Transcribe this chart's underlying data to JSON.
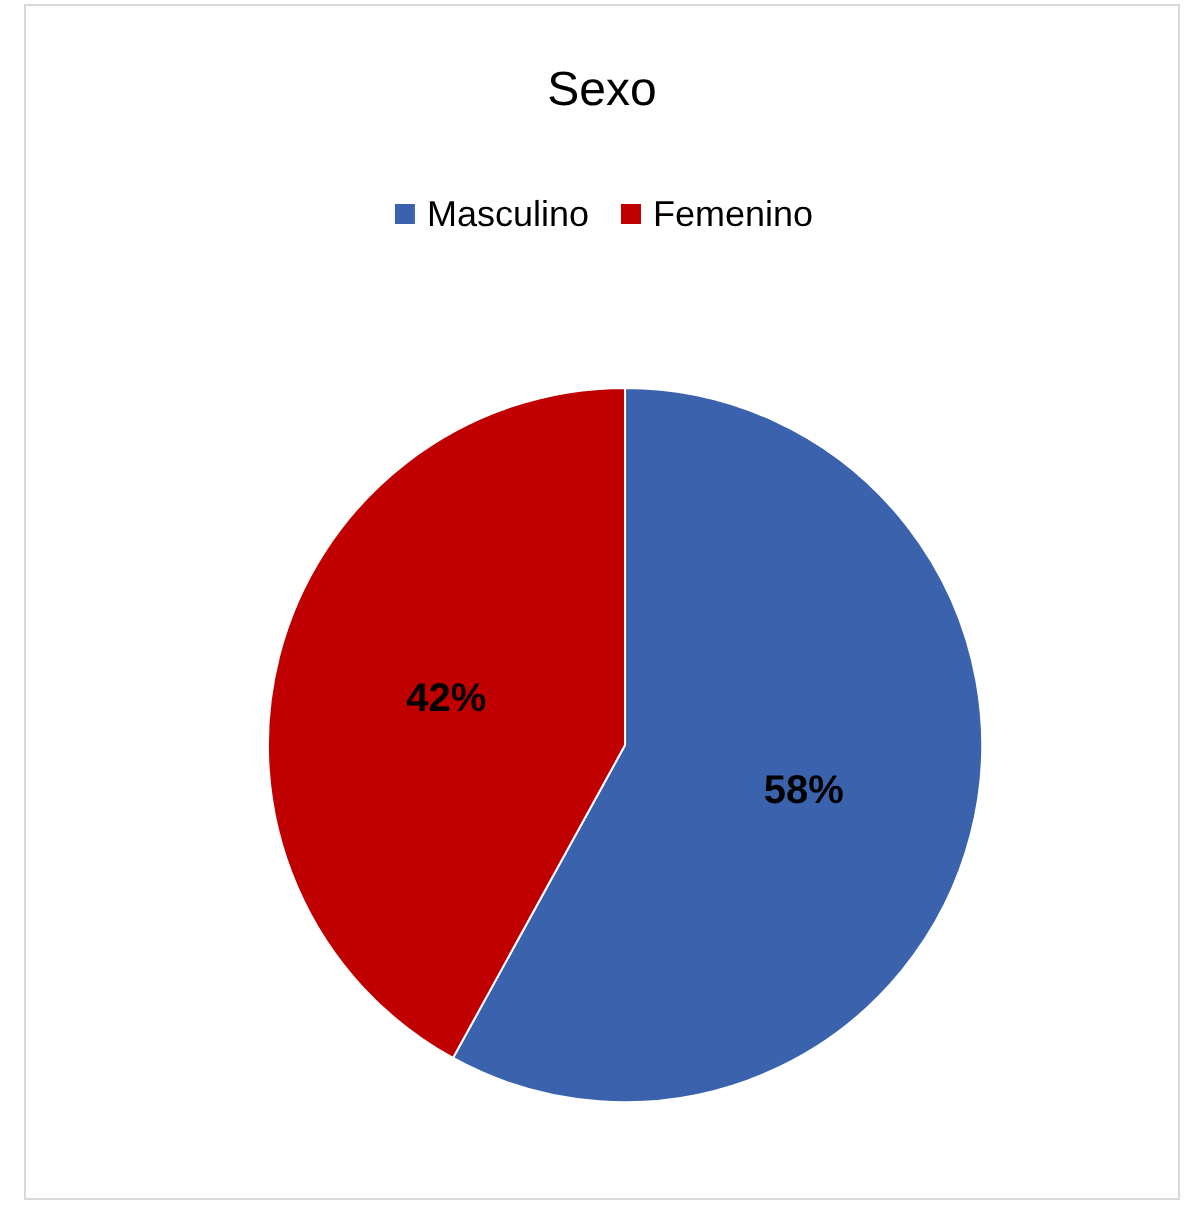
{
  "chart_data": {
    "type": "pie",
    "title": "Sexo",
    "categories": [
      "Masculino",
      "Femenino"
    ],
    "values": [
      58,
      42
    ],
    "colors": [
      "#3b62ad",
      "#c00000"
    ],
    "value_labels": [
      "58%",
      "42%"
    ],
    "legend": "top"
  }
}
